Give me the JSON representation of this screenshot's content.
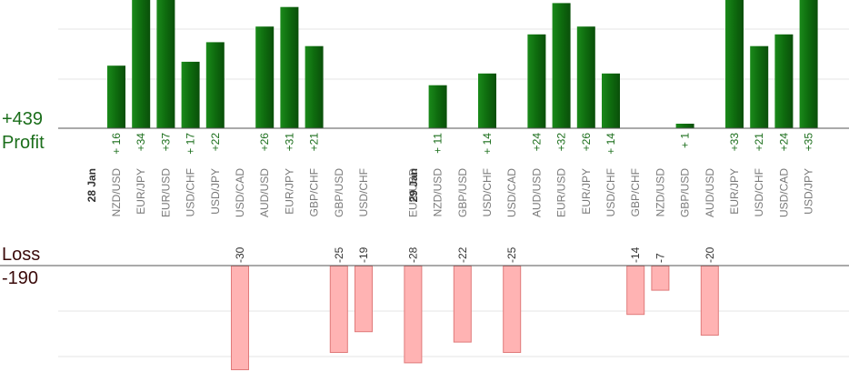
{
  "chart_data": {
    "type": "bar",
    "profit_label": "Profit",
    "profit_total": "+439",
    "loss_label": "Loss",
    "loss_total": "-190",
    "colors": {
      "profit": "#0e6b0e",
      "profit_text": "#1b6e1b",
      "loss": "#ffb3b3",
      "loss_edge": "#e07a7a",
      "axis": "#555555",
      "grid": "#e6e6e6"
    },
    "groups": [
      {
        "date": "28 Jan",
        "pairs": [
          "NZD/USD",
          "EUR/JPY",
          "EUR/USD",
          "USD/CHF",
          "USD/JPY",
          "USD/CAD",
          "AUD/USD",
          "EUR/JPY",
          "GBP/CHF",
          "GBP/USD",
          "USD/CHF"
        ]
      },
      {
        "date": "29 Jan",
        "pairs": [
          "EUR/USD",
          "NZD/USD",
          "GBP/USD",
          "USD/CHF",
          "USD/CAD",
          "AUD/USD",
          "EUR/USD",
          "EUR/JPY",
          "USD/CHF",
          "GBP/CHF",
          "NZD/USD",
          "GBP/USD",
          "AUD/USD",
          "EUR/JPY",
          "USD/CHF",
          "USD/CAD",
          "USD/JPY"
        ]
      }
    ],
    "values": [
      16,
      34,
      37,
      17,
      22,
      -30,
      26,
      31,
      21,
      -25,
      -19,
      -28,
      11,
      -22,
      14,
      -25,
      24,
      32,
      26,
      14,
      -14,
      -7,
      1,
      -20,
      33,
      21,
      24,
      35
    ],
    "profit_labels": [
      "+ 16",
      "+34",
      "+37",
      "+ 17",
      "+22",
      "",
      "+26",
      "+31",
      "+21",
      "",
      "",
      "",
      "+ 11",
      "",
      "+ 14",
      "",
      "+24",
      "+32",
      "+26",
      "+ 14",
      "",
      "",
      "+ 1",
      "",
      "+33",
      "+21",
      "+24",
      "+35"
    ],
    "loss_labels": [
      "",
      "",
      "",
      "",
      "",
      "-30",
      "",
      "",
      "",
      "-25",
      "-19",
      "-28",
      "",
      "-22",
      "",
      "-25",
      "",
      "",
      "",
      "",
      "-14",
      "-7",
      "",
      "-20",
      "",
      "",
      "",
      ""
    ]
  }
}
